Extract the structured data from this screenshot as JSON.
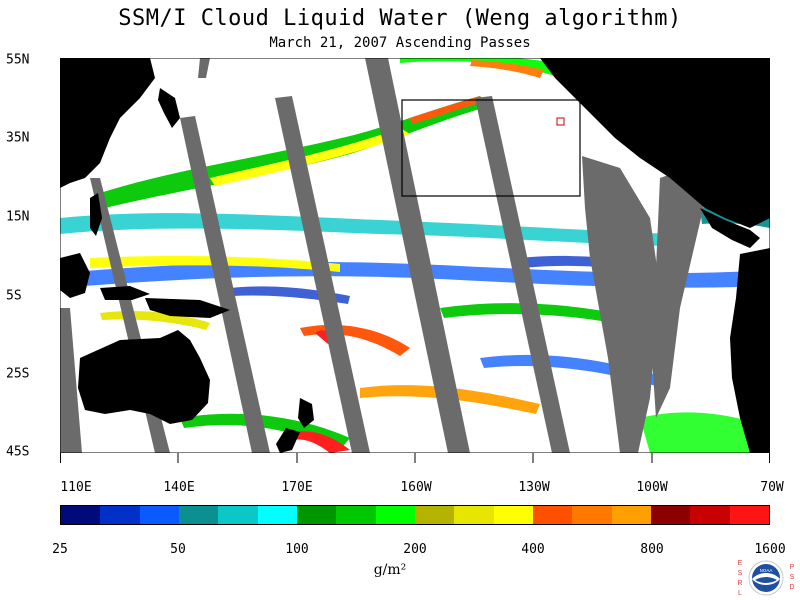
{
  "title": "SSM/I Cloud Liquid Water (Weng algorithm)",
  "subtitle": "March 21, 2007  Ascending Passes",
  "latitude_labels": [
    "55N",
    "35N",
    "15N",
    "5S",
    "25S",
    "45S"
  ],
  "longitude_labels": [
    "110E",
    "140E",
    "170E",
    "160W",
    "130W",
    "100W",
    "70W"
  ],
  "colorbar": {
    "colors": [
      "#000a78",
      "#0030c8",
      "#0a5aff",
      "#0a9090",
      "#0ac8c8",
      "#00ffff",
      "#009600",
      "#00c800",
      "#00ff00",
      "#b4b400",
      "#e6e600",
      "#ffff00",
      "#ff5000",
      "#ff7800",
      "#ffa000",
      "#8c0000",
      "#c80000",
      "#ff1414"
    ],
    "tick_labels": [
      "25",
      "50",
      "100",
      "200",
      "400",
      "800",
      "1600"
    ],
    "unit_label": "g/m²"
  },
  "logo": {
    "left_text": "ESRL",
    "right_text": "PSD",
    "center": "NOAA"
  }
}
